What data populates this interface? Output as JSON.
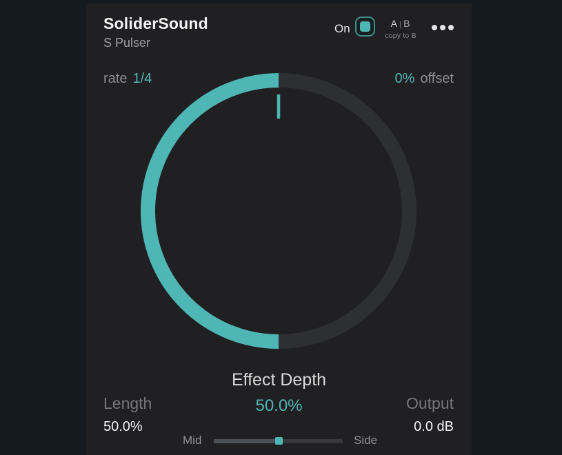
{
  "colors": {
    "outer_bg": "#141a1d",
    "panel_bg": "#201f21",
    "accent": "#4fb6b6",
    "ring_track": "#2d2f31"
  },
  "header": {
    "title": "SoliderSound",
    "subtitle": "S Pulser",
    "power": {
      "label": "On",
      "state": "on"
    },
    "ab": {
      "a": "A",
      "separator": "|",
      "b": "B",
      "copy_label": "copy to B"
    },
    "menu_icon": "ellipsis-icon"
  },
  "rate": {
    "label": "rate",
    "value": "1/4"
  },
  "offset": {
    "value": "0%",
    "label": "offset"
  },
  "knob": {
    "label": "Effect Depth",
    "value": "50.0%",
    "percent": 50
  },
  "length": {
    "label": "Length",
    "value": "50.0%"
  },
  "output": {
    "label": "Output",
    "value": "0.0 dB"
  },
  "mid_side": {
    "left_label": "Mid",
    "right_label": "Side",
    "percent": 50
  }
}
